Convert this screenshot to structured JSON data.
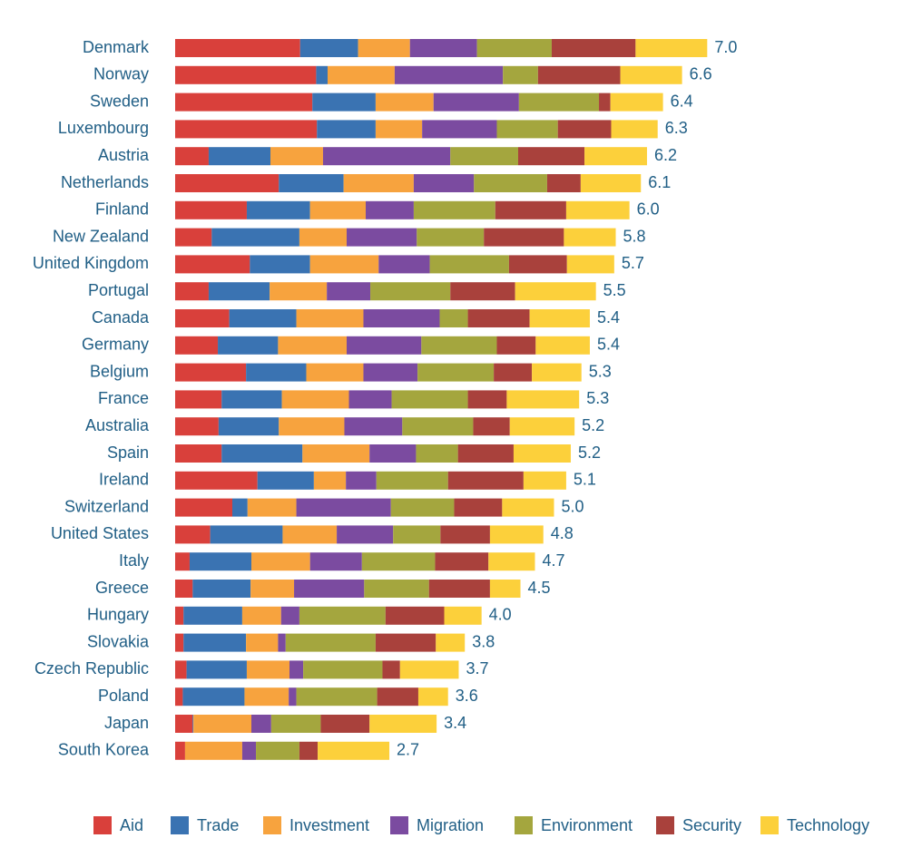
{
  "chart_data": {
    "type": "bar",
    "orientation": "horizontal",
    "stacked": true,
    "categories": [
      "Denmark",
      "Norway",
      "Sweden",
      "Luxembourg",
      "Austria",
      "Netherlands",
      "Finland",
      "New Zealand",
      "United Kingdom",
      "Portugal",
      "Canada",
      "Germany",
      "Belgium",
      "France",
      "Australia",
      "Spain",
      "Ireland",
      "Switzerland",
      "United States",
      "Italy",
      "Greece",
      "Hungary",
      "Slovakia",
      "Czech Republic",
      "Poland",
      "Japan",
      "South Korea"
    ],
    "series": [
      {
        "name": "Aid",
        "color": "#d9403b",
        "values": [
          1.64,
          1.85,
          1.8,
          1.86,
          0.44,
          1.36,
          0.94,
          0.48,
          0.98,
          0.44,
          0.71,
          0.56,
          0.93,
          0.61,
          0.57,
          0.61,
          1.08,
          0.75,
          0.46,
          0.19,
          0.23,
          0.11,
          0.11,
          0.15,
          0.1,
          0.23,
          0.13
        ]
      },
      {
        "name": "Trade",
        "color": "#3a73b2",
        "values": [
          0.76,
          0.15,
          0.83,
          0.77,
          0.81,
          0.85,
          0.83,
          1.15,
          0.79,
          0.8,
          0.88,
          0.79,
          0.79,
          0.79,
          0.79,
          1.06,
          0.74,
          0.2,
          0.95,
          0.81,
          0.76,
          0.77,
          0.82,
          0.79,
          0.81,
          0.01,
          0
        ]
      },
      {
        "name": "Investment",
        "color": "#f7a33e",
        "values": [
          0.68,
          0.88,
          0.76,
          0.61,
          0.69,
          0.92,
          0.73,
          0.62,
          0.9,
          0.75,
          0.88,
          0.9,
          0.75,
          0.88,
          0.86,
          0.88,
          0.42,
          0.64,
          0.71,
          0.77,
          0.57,
          0.51,
          0.42,
          0.56,
          0.58,
          0.76,
          0.75
        ]
      },
      {
        "name": "Migration",
        "color": "#7b4ba0",
        "values": [
          0.88,
          1.42,
          1.12,
          0.98,
          1.67,
          0.79,
          0.63,
          0.92,
          0.67,
          0.57,
          1.0,
          0.98,
          0.71,
          0.56,
          0.76,
          0.61,
          0.4,
          1.24,
          0.74,
          0.68,
          0.92,
          0.24,
          0.1,
          0.18,
          0.1,
          0.26,
          0.18
        ]
      },
      {
        "name": "Environment",
        "color": "#a4a63e",
        "values": [
          0.98,
          0.46,
          1.05,
          0.8,
          0.89,
          0.96,
          1.07,
          0.88,
          1.04,
          1.05,
          0.37,
          0.99,
          1.0,
          1.0,
          0.93,
          0.55,
          0.94,
          0.83,
          0.62,
          0.96,
          0.85,
          1.13,
          1.18,
          1.04,
          1.06,
          0.65,
          0.57
        ]
      },
      {
        "name": "Security",
        "color": "#a9413c",
        "values": [
          1.1,
          1.08,
          0.15,
          0.7,
          0.87,
          0.44,
          0.93,
          1.05,
          0.76,
          0.85,
          0.81,
          0.51,
          0.5,
          0.51,
          0.48,
          0.73,
          0.99,
          0.63,
          0.65,
          0.7,
          0.8,
          0.77,
          0.79,
          0.23,
          0.54,
          0.64,
          0.24
        ]
      },
      {
        "name": "Technology",
        "color": "#fcd03b",
        "values": [
          0.94,
          0.81,
          0.69,
          0.61,
          0.82,
          0.79,
          0.83,
          0.68,
          0.62,
          1.06,
          0.79,
          0.71,
          0.65,
          0.95,
          0.85,
          0.75,
          0.56,
          0.68,
          0.7,
          0.61,
          0.4,
          0.49,
          0.38,
          0.77,
          0.39,
          0.88,
          0.94
        ]
      }
    ],
    "totals": [
      7,
      6.6,
      6.4,
      6.3,
      6.2,
      6.1,
      6,
      5.8,
      5.7,
      5.5,
      5.4,
      5.4,
      5.3,
      5.3,
      5.2,
      5.2,
      5.1,
      5,
      4.8,
      4.7,
      4.5,
      4,
      3.8,
      3.7,
      3.6,
      3.4,
      2.7
    ],
    "total_labels": [
      "7.0",
      "6.6",
      "6.4",
      "6.3",
      "6.2",
      "6.1",
      "6.0",
      "5.8",
      "5.7",
      "5.5",
      "5.4",
      "5.4",
      "5.3",
      "5.3",
      "5.2",
      "5.2",
      "5.1",
      "5.0",
      "4.8",
      "4.7",
      "4.5",
      "4.0",
      "3.8",
      "3.7",
      "3.6",
      "3.4",
      "2.7"
    ]
  }
}
